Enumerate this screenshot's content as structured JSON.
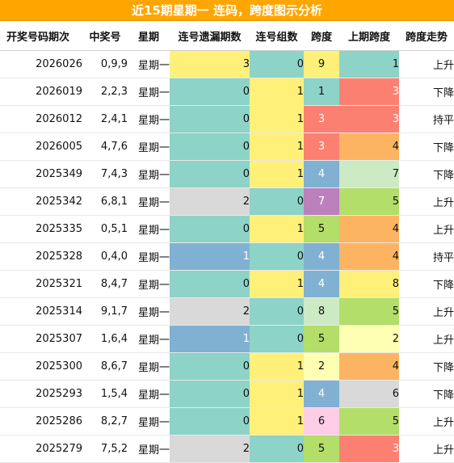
{
  "title": "近15期星期一 连码，跨度图示分析",
  "headers": [
    "开奖号码期次",
    "中奖号",
    "星期",
    "连号遗漏期数",
    "连号组数",
    "跨度",
    "上期跨度",
    "跨度走势"
  ],
  "colors": {
    "title_bg": "#ffa500",
    "yellow": "#fff07a",
    "teal": "#8dd3c7",
    "blue": "#80b1d3",
    "grey": "#d9d9d9",
    "red": "#fb8072",
    "orange": "#fdb462",
    "green": "#b3de69",
    "pale_green": "#ccebc5",
    "pale_yellow": "#ffffb3",
    "purple": "#bc80bd",
    "pink": "#fccde5"
  },
  "rows": [
    {
      "issue": "2026026",
      "numbers": "0,9,9",
      "weekday": "星期一",
      "missing": "3",
      "groups": "0",
      "span": "9",
      "prev_span": "1",
      "trend": "上升"
    },
    {
      "issue": "2026019",
      "numbers": "2,2,3",
      "weekday": "星期一",
      "missing": "0",
      "groups": "1",
      "span": "1",
      "prev_span": "3",
      "trend": "下降"
    },
    {
      "issue": "2026012",
      "numbers": "2,4,1",
      "weekday": "星期一",
      "missing": "0",
      "groups": "1",
      "span": "3",
      "prev_span": "3",
      "trend": "持平"
    },
    {
      "issue": "2026005",
      "numbers": "4,7,6",
      "weekday": "星期一",
      "missing": "0",
      "groups": "1",
      "span": "3",
      "prev_span": "4",
      "trend": "下降"
    },
    {
      "issue": "2025349",
      "numbers": "7,4,3",
      "weekday": "星期一",
      "missing": "0",
      "groups": "1",
      "span": "4",
      "prev_span": "7",
      "trend": "下降"
    },
    {
      "issue": "2025342",
      "numbers": "6,8,1",
      "weekday": "星期一",
      "missing": "2",
      "groups": "0",
      "span": "7",
      "prev_span": "5",
      "trend": "上升"
    },
    {
      "issue": "2025335",
      "numbers": "0,5,1",
      "weekday": "星期一",
      "missing": "0",
      "groups": "1",
      "span": "5",
      "prev_span": "4",
      "trend": "上升"
    },
    {
      "issue": "2025328",
      "numbers": "0,4,0",
      "weekday": "星期一",
      "missing": "1",
      "groups": "0",
      "span": "4",
      "prev_span": "4",
      "trend": "持平"
    },
    {
      "issue": "2025321",
      "numbers": "8,4,7",
      "weekday": "星期一",
      "missing": "0",
      "groups": "1",
      "span": "4",
      "prev_span": "8",
      "trend": "下降"
    },
    {
      "issue": "2025314",
      "numbers": "9,1,7",
      "weekday": "星期一",
      "missing": "2",
      "groups": "0",
      "span": "8",
      "prev_span": "5",
      "trend": "上升"
    },
    {
      "issue": "2025307",
      "numbers": "1,6,4",
      "weekday": "星期一",
      "missing": "1",
      "groups": "0",
      "span": "5",
      "prev_span": "2",
      "trend": "上升"
    },
    {
      "issue": "2025300",
      "numbers": "8,6,7",
      "weekday": "星期一",
      "missing": "0",
      "groups": "1",
      "span": "2",
      "prev_span": "4",
      "trend": "下降"
    },
    {
      "issue": "2025293",
      "numbers": "1,5,4",
      "weekday": "星期一",
      "missing": "0",
      "groups": "1",
      "span": "4",
      "prev_span": "6",
      "trend": "下降"
    },
    {
      "issue": "2025286",
      "numbers": "8,2,7",
      "weekday": "星期一",
      "missing": "0",
      "groups": "1",
      "span": "6",
      "prev_span": "5",
      "trend": "上升"
    },
    {
      "issue": "2025279",
      "numbers": "7,5,2",
      "weekday": "星期一",
      "missing": "2",
      "groups": "0",
      "span": "5",
      "prev_span": "3",
      "trend": "上升"
    }
  ]
}
